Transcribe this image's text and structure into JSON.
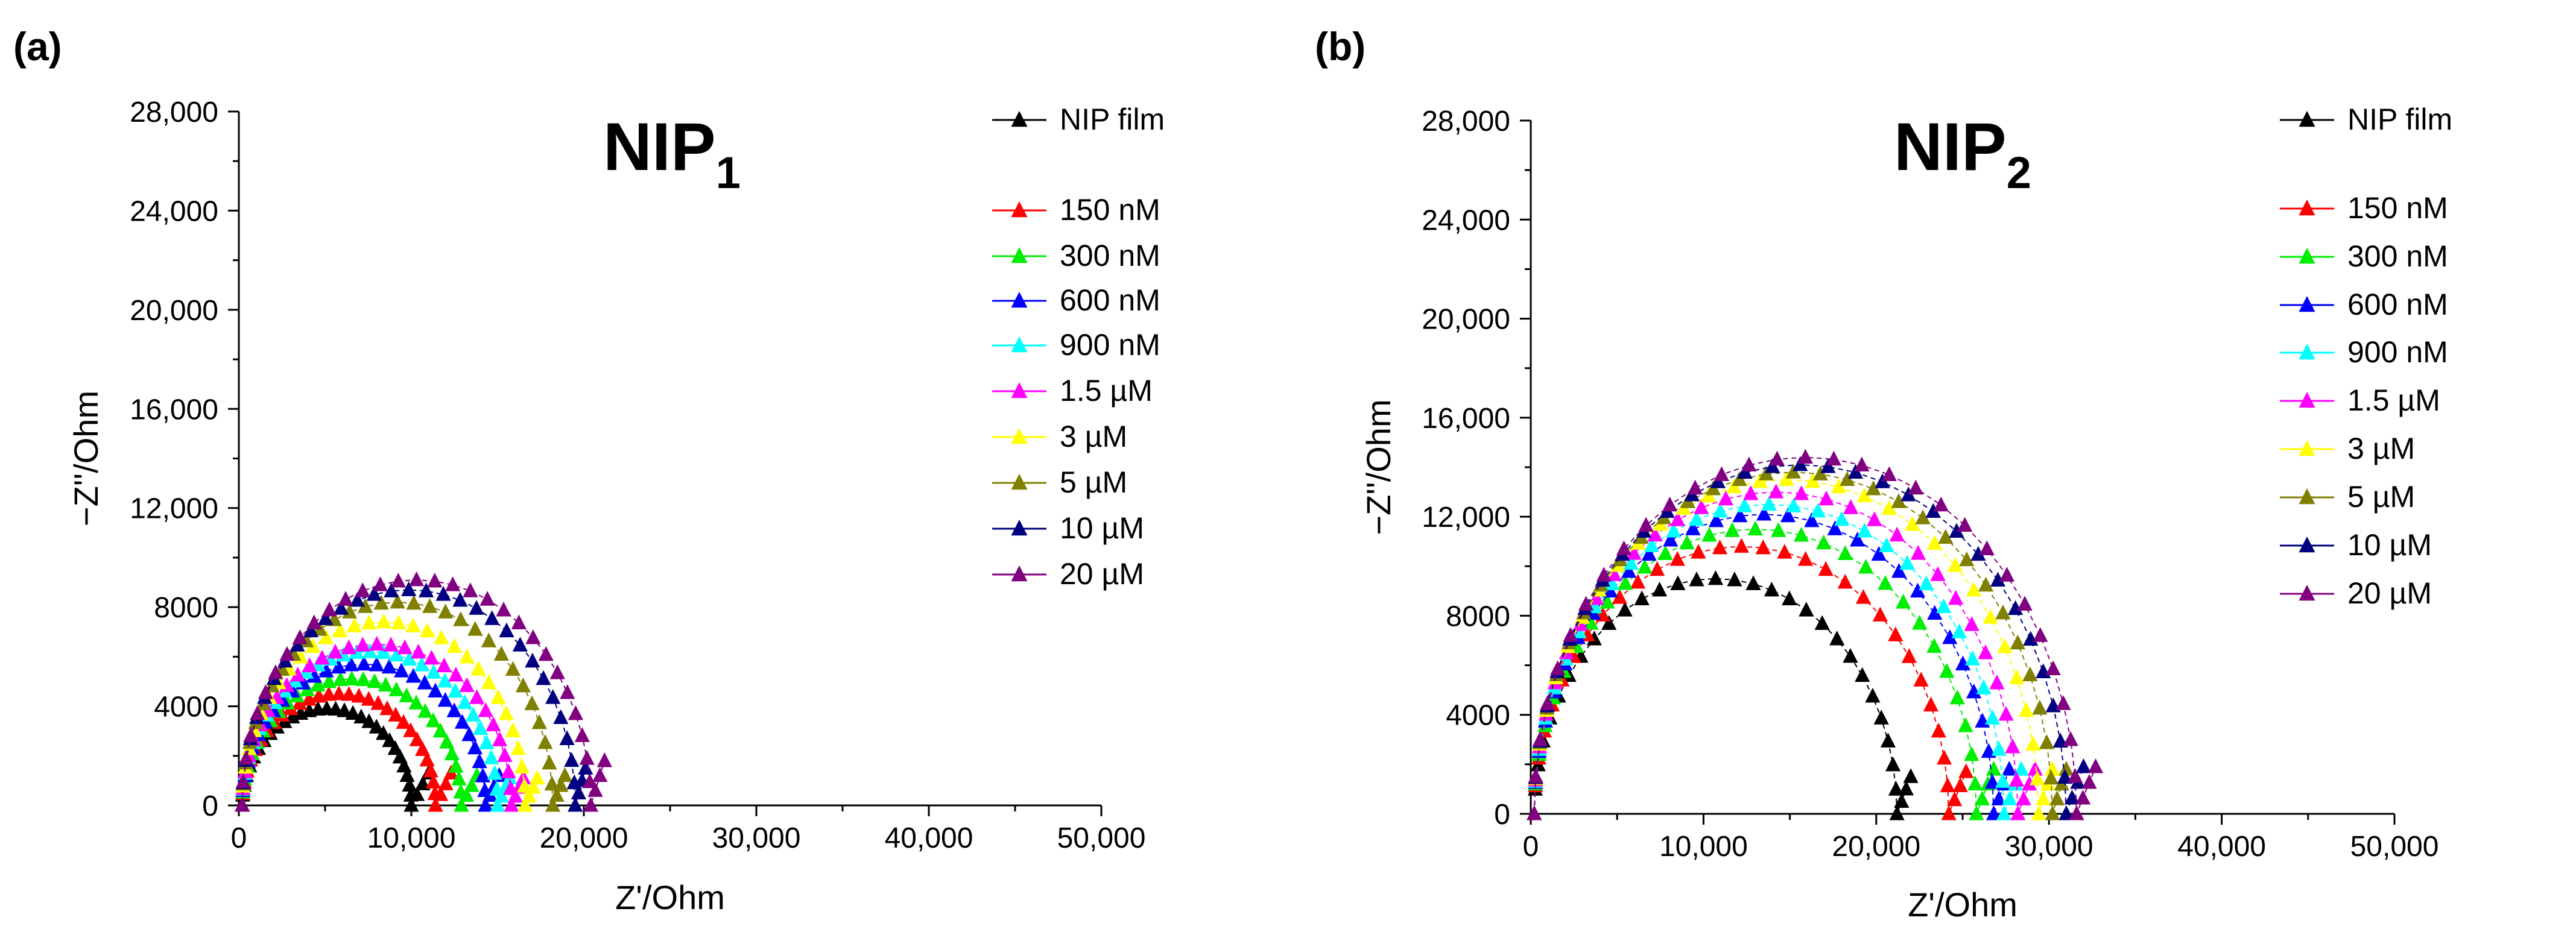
{
  "panels": [
    {
      "panel_label": "(a)",
      "title_main": "NIP",
      "title_sub": "1",
      "legend_title_entry": "NIP film"
    },
    {
      "panel_label": "(b)",
      "title_main": "NIP",
      "title_sub": "2",
      "legend_title_entry": "NIP film"
    }
  ],
  "chart_data": [
    {
      "type": "scatter",
      "title": "NIP1",
      "xlabel": "Z'/Ohm",
      "ylabel": "−Z''/Ohm",
      "xlim": [
        0,
        50000
      ],
      "ylim": [
        0,
        28000
      ],
      "x_ticks": [
        0,
        10000,
        20000,
        30000,
        40000,
        50000
      ],
      "x_tick_labels": [
        "0",
        "10,000",
        "20,000",
        "30,000",
        "40,000",
        "50,000"
      ],
      "y_ticks": [
        0,
        4000,
        8000,
        12000,
        16000,
        20000,
        24000,
        28000
      ],
      "y_tick_labels": [
        "0",
        "4000",
        "8000",
        "12,000",
        "16,000",
        "20,000",
        "24,000",
        "28,000"
      ],
      "legend_position": "top-right",
      "series": [
        {
          "name": "NIP film",
          "color": "#000000",
          "r0": 200,
          "diameter": 9800,
          "peak": 3900,
          "tail_x": 11000,
          "tail_y": 1300
        },
        {
          "name": "150 nM",
          "color": "#ff0000",
          "r0": 200,
          "diameter": 11200,
          "peak": 4500,
          "tail_x": 12300,
          "tail_y": 1300
        },
        {
          "name": "300 nM",
          "color": "#00ee00",
          "r0": 200,
          "diameter": 12700,
          "peak": 5100,
          "tail_x": 13800,
          "tail_y": 1200
        },
        {
          "name": "600 nM",
          "color": "#0000ff",
          "r0": 200,
          "diameter": 14100,
          "peak": 5700,
          "tail_x": 15100,
          "tail_y": 1200
        },
        {
          "name": "900 nM",
          "color": "#00ffff",
          "r0": 200,
          "diameter": 14800,
          "peak": 6200,
          "tail_x": 15700,
          "tail_y": 1100
        },
        {
          "name": "1.5 µM",
          "color": "#ff00ff",
          "r0": 200,
          "diameter": 15600,
          "peak": 6500,
          "tail_x": 16500,
          "tail_y": 1100
        },
        {
          "name": "3 µM",
          "color": "#ffff00",
          "r0": 200,
          "diameter": 16400,
          "peak": 7400,
          "tail_x": 17300,
          "tail_y": 1100
        },
        {
          "name": "5 µM",
          "color": "#808000",
          "r0": 200,
          "diameter": 18000,
          "peak": 8200,
          "tail_x": 18900,
          "tail_y": 1200
        },
        {
          "name": "10 µM",
          "color": "#000080",
          "r0": 200,
          "diameter": 19300,
          "peak": 8700,
          "tail_x": 20100,
          "tail_y": 1500
        },
        {
          "name": "20 µM",
          "color": "#800080",
          "r0": 200,
          "diameter": 20200,
          "peak": 9100,
          "tail_x": 21200,
          "tail_y": 1800
        }
      ]
    },
    {
      "type": "scatter",
      "title": "NIP2",
      "xlabel": "Z'/Ohm",
      "ylabel": "−Z''/Ohm",
      "xlim": [
        0,
        50000
      ],
      "ylim": [
        0,
        28000
      ],
      "x_ticks": [
        0,
        10000,
        20000,
        30000,
        40000,
        50000
      ],
      "x_tick_labels": [
        "0",
        "10,000",
        "20,000",
        "30,000",
        "40,000",
        "50,000"
      ],
      "y_ticks": [
        0,
        4000,
        8000,
        12000,
        16000,
        20000,
        24000,
        28000
      ],
      "y_tick_labels": [
        "0",
        "4000",
        "8000",
        "12,000",
        "16,000",
        "20,000",
        "24,000",
        "28,000"
      ],
      "legend_position": "top-right",
      "series": [
        {
          "name": "NIP film",
          "color": "#000000",
          "r0": 200,
          "diameter": 21000,
          "peak": 9500,
          "tail_x": 22000,
          "tail_y": 1500
        },
        {
          "name": "150 nM",
          "color": "#ff0000",
          "r0": 200,
          "diameter": 24000,
          "peak": 10800,
          "tail_x": 25200,
          "tail_y": 1700
        },
        {
          "name": "300 nM",
          "color": "#00ee00",
          "r0": 200,
          "diameter": 25600,
          "peak": 11500,
          "tail_x": 26800,
          "tail_y": 1800
        },
        {
          "name": "600 nM",
          "color": "#0000ff",
          "r0": 200,
          "diameter": 26600,
          "peak": 12100,
          "tail_x": 27700,
          "tail_y": 1800
        },
        {
          "name": "900 nM",
          "color": "#00ffff",
          "r0": 200,
          "diameter": 27200,
          "peak": 12500,
          "tail_x": 28400,
          "tail_y": 1800
        },
        {
          "name": "1.5 µM",
          "color": "#ff00ff",
          "r0": 200,
          "diameter": 28000,
          "peak": 13000,
          "tail_x": 29200,
          "tail_y": 1800
        },
        {
          "name": "3 µM",
          "color": "#ffff00",
          "r0": 200,
          "diameter": 29200,
          "peak": 13500,
          "tail_x": 30200,
          "tail_y": 1800
        },
        {
          "name": "5 µM",
          "color": "#808000",
          "r0": 200,
          "diameter": 30000,
          "peak": 13800,
          "tail_x": 31000,
          "tail_y": 1800
        },
        {
          "name": "10 µM",
          "color": "#000080",
          "r0": 200,
          "diameter": 30800,
          "peak": 14100,
          "tail_x": 32000,
          "tail_y": 1900
        },
        {
          "name": "20 µM",
          "color": "#800080",
          "r0": 200,
          "diameter": 31400,
          "peak": 14400,
          "tail_x": 32700,
          "tail_y": 1900
        }
      ]
    }
  ]
}
